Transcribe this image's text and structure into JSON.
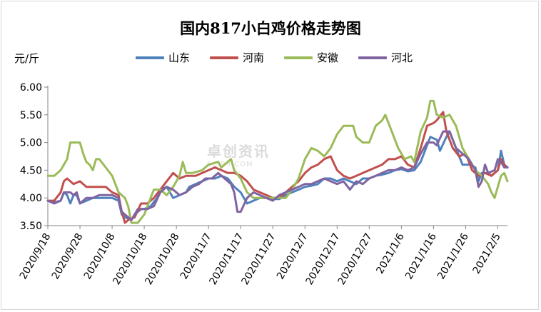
{
  "chart_data": {
    "type": "line",
    "title": "国内817小白鸡价格走势图",
    "ylabel": "元/斤",
    "ylim": [
      3.5,
      6.0
    ],
    "yticks": [
      "3.50",
      "4.00",
      "4.50",
      "5.00",
      "5.50",
      "6.00"
    ],
    "xticks": [
      "2020/9/18",
      "2020/9/28",
      "2020/10/8",
      "2020/10/18",
      "2020/10/28",
      "2020/11/7",
      "2020/11/17",
      "2020/11/27",
      "2020/12/7",
      "2020/12/17",
      "2020/12/27",
      "2021/1/6",
      "2021/1/16",
      "2021/1/26",
      "2021/2/5"
    ],
    "x_start": "2020/9/18",
    "x_end": "2021/2/5",
    "grid": false,
    "legend_position": "top",
    "series": [
      {
        "name": "山东",
        "color": "#4f81bd",
        "points": [
          [
            0,
            3.95
          ],
          [
            2,
            3.92
          ],
          [
            4,
            3.95
          ],
          [
            5,
            4.1
          ],
          [
            6,
            4.05
          ],
          [
            7,
            3.9
          ],
          [
            8,
            4.05
          ],
          [
            9,
            4.05
          ],
          [
            10,
            3.9
          ],
          [
            12,
            3.95
          ],
          [
            14,
            4.0
          ],
          [
            20,
            4.0
          ],
          [
            22,
            3.95
          ],
          [
            23,
            3.7
          ],
          [
            24,
            3.65
          ],
          [
            26,
            3.6
          ],
          [
            27,
            3.7
          ],
          [
            28,
            3.8
          ],
          [
            30,
            3.8
          ],
          [
            32,
            3.85
          ],
          [
            34,
            4.0
          ],
          [
            35,
            4.15
          ],
          [
            37,
            4.2
          ],
          [
            39,
            4.0
          ],
          [
            41,
            4.05
          ],
          [
            43,
            4.1
          ],
          [
            44,
            4.2
          ],
          [
            46,
            4.25
          ],
          [
            48,
            4.3
          ],
          [
            50,
            4.35
          ],
          [
            52,
            4.35
          ],
          [
            54,
            4.4
          ],
          [
            56,
            4.35
          ],
          [
            58,
            4.2
          ],
          [
            60,
            4.1
          ],
          [
            62,
            3.9
          ],
          [
            64,
            3.95
          ],
          [
            66,
            4.0
          ],
          [
            68,
            4.0
          ],
          [
            70,
            3.98
          ],
          [
            72,
            3.98
          ],
          [
            74,
            4.05
          ],
          [
            76,
            4.1
          ],
          [
            78,
            4.15
          ],
          [
            80,
            4.2
          ],
          [
            82,
            4.22
          ],
          [
            84,
            4.25
          ],
          [
            86,
            4.35
          ],
          [
            88,
            4.35
          ],
          [
            90,
            4.3
          ],
          [
            92,
            4.35
          ],
          [
            94,
            4.3
          ],
          [
            96,
            4.25
          ],
          [
            98,
            4.35
          ],
          [
            100,
            4.35
          ],
          [
            102,
            4.4
          ],
          [
            104,
            4.42
          ],
          [
            106,
            4.45
          ],
          [
            108,
            4.5
          ],
          [
            110,
            4.52
          ],
          [
            112,
            4.48
          ],
          [
            114,
            4.5
          ],
          [
            116,
            4.65
          ],
          [
            118,
            4.95
          ],
          [
            119,
            5.1
          ],
          [
            121,
            5.05
          ],
          [
            122,
            4.85
          ],
          [
            124,
            5.1
          ],
          [
            125,
            5.2
          ],
          [
            127,
            4.9
          ],
          [
            129,
            4.6
          ],
          [
            131,
            4.6
          ],
          [
            133,
            4.55
          ],
          [
            134,
            4.3
          ],
          [
            135,
            4.45
          ],
          [
            137,
            4.45
          ],
          [
            138,
            4.4
          ],
          [
            140,
            4.5
          ],
          [
            141,
            4.85
          ],
          [
            142,
            4.6
          ],
          [
            143,
            4.55
          ]
        ]
      },
      {
        "name": "河南",
        "color": "#c0504d",
        "points": [
          [
            0,
            3.95
          ],
          [
            2,
            3.95
          ],
          [
            4,
            4.1
          ],
          [
            5,
            4.3
          ],
          [
            6,
            4.35
          ],
          [
            8,
            4.25
          ],
          [
            10,
            4.3
          ],
          [
            11,
            4.25
          ],
          [
            12,
            4.2
          ],
          [
            18,
            4.2
          ],
          [
            20,
            4.1
          ],
          [
            22,
            4.05
          ],
          [
            23,
            3.75
          ],
          [
            24,
            3.55
          ],
          [
            25,
            3.6
          ],
          [
            27,
            3.65
          ],
          [
            29,
            3.9
          ],
          [
            31,
            3.9
          ],
          [
            33,
            4.0
          ],
          [
            35,
            4.15
          ],
          [
            37,
            4.3
          ],
          [
            39,
            4.45
          ],
          [
            41,
            4.35
          ],
          [
            43,
            4.4
          ],
          [
            46,
            4.4
          ],
          [
            48,
            4.45
          ],
          [
            50,
            4.5
          ],
          [
            52,
            4.55
          ],
          [
            54,
            4.5
          ],
          [
            56,
            4.45
          ],
          [
            58,
            4.45
          ],
          [
            60,
            4.4
          ],
          [
            62,
            4.3
          ],
          [
            64,
            4.15
          ],
          [
            66,
            4.1
          ],
          [
            68,
            4.05
          ],
          [
            70,
            4.0
          ],
          [
            72,
            4.0
          ],
          [
            74,
            4.1
          ],
          [
            76,
            4.2
          ],
          [
            78,
            4.3
          ],
          [
            80,
            4.45
          ],
          [
            82,
            4.55
          ],
          [
            84,
            4.6
          ],
          [
            86,
            4.7
          ],
          [
            88,
            4.75
          ],
          [
            90,
            4.5
          ],
          [
            92,
            4.4
          ],
          [
            94,
            4.35
          ],
          [
            96,
            4.4
          ],
          [
            98,
            4.45
          ],
          [
            100,
            4.5
          ],
          [
            102,
            4.55
          ],
          [
            104,
            4.6
          ],
          [
            106,
            4.7
          ],
          [
            108,
            4.7
          ],
          [
            110,
            4.75
          ],
          [
            112,
            4.6
          ],
          [
            114,
            4.55
          ],
          [
            116,
            4.9
          ],
          [
            118,
            5.3
          ],
          [
            120,
            5.35
          ],
          [
            121,
            5.4
          ],
          [
            123,
            5.55
          ],
          [
            124,
            5.2
          ],
          [
            126,
            4.9
          ],
          [
            128,
            4.75
          ],
          [
            130,
            4.8
          ],
          [
            132,
            4.5
          ],
          [
            134,
            4.4
          ],
          [
            136,
            4.45
          ],
          [
            138,
            4.4
          ],
          [
            140,
            4.5
          ],
          [
            141,
            4.7
          ],
          [
            142,
            4.6
          ],
          [
            143,
            4.55
          ]
        ]
      },
      {
        "name": "安徽",
        "color": "#9bbb59",
        "points": [
          [
            0,
            4.4
          ],
          [
            2,
            4.4
          ],
          [
            4,
            4.5
          ],
          [
            6,
            4.7
          ],
          [
            7,
            5.0
          ],
          [
            10,
            5.0
          ],
          [
            11,
            4.8
          ],
          [
            12,
            4.65
          ],
          [
            13,
            4.6
          ],
          [
            14,
            4.5
          ],
          [
            15,
            4.7
          ],
          [
            16,
            4.7
          ],
          [
            18,
            4.55
          ],
          [
            20,
            4.4
          ],
          [
            22,
            4.1
          ],
          [
            24,
            4.0
          ],
          [
            25,
            3.85
          ],
          [
            26,
            3.55
          ],
          [
            28,
            3.55
          ],
          [
            30,
            3.7
          ],
          [
            32,
            4.0
          ],
          [
            33,
            4.15
          ],
          [
            35,
            4.15
          ],
          [
            37,
            4.05
          ],
          [
            39,
            4.2
          ],
          [
            41,
            4.4
          ],
          [
            42,
            4.65
          ],
          [
            43,
            4.45
          ],
          [
            45,
            4.45
          ],
          [
            48,
            4.5
          ],
          [
            50,
            4.6
          ],
          [
            53,
            4.65
          ],
          [
            54,
            4.55
          ],
          [
            55,
            4.6
          ],
          [
            57,
            4.7
          ],
          [
            58,
            4.5
          ],
          [
            60,
            4.35
          ],
          [
            62,
            4.1
          ],
          [
            64,
            4.0
          ],
          [
            66,
            4.0
          ],
          [
            68,
            4.0
          ],
          [
            70,
            4.0
          ],
          [
            72,
            4.0
          ],
          [
            74,
            4.0
          ],
          [
            76,
            4.15
          ],
          [
            78,
            4.35
          ],
          [
            80,
            4.7
          ],
          [
            82,
            4.9
          ],
          [
            84,
            4.85
          ],
          [
            86,
            4.75
          ],
          [
            88,
            4.9
          ],
          [
            90,
            5.15
          ],
          [
            92,
            5.3
          ],
          [
            95,
            5.3
          ],
          [
            96,
            5.1
          ],
          [
            98,
            5.0
          ],
          [
            100,
            5.0
          ],
          [
            102,
            5.3
          ],
          [
            104,
            5.4
          ],
          [
            105,
            5.5
          ],
          [
            107,
            5.2
          ],
          [
            109,
            4.9
          ],
          [
            111,
            4.7
          ],
          [
            113,
            4.75
          ],
          [
            114,
            4.65
          ],
          [
            116,
            5.2
          ],
          [
            118,
            5.45
          ],
          [
            119,
            5.75
          ],
          [
            120,
            5.75
          ],
          [
            121,
            5.5
          ],
          [
            123,
            5.45
          ],
          [
            125,
            5.5
          ],
          [
            127,
            5.3
          ],
          [
            129,
            4.9
          ],
          [
            131,
            4.7
          ],
          [
            133,
            4.5
          ],
          [
            135,
            4.4
          ],
          [
            137,
            4.25
          ],
          [
            138,
            4.1
          ],
          [
            139,
            4.0
          ],
          [
            141,
            4.4
          ],
          [
            142,
            4.45
          ],
          [
            143,
            4.3
          ]
        ]
      },
      {
        "name": "河北",
        "color": "#8064a2",
        "points": [
          [
            0,
            3.95
          ],
          [
            2,
            3.9
          ],
          [
            4,
            3.95
          ],
          [
            5,
            4.1
          ],
          [
            7,
            4.1
          ],
          [
            8,
            4.05
          ],
          [
            9,
            4.1
          ],
          [
            10,
            3.9
          ],
          [
            12,
            4.0
          ],
          [
            14,
            4.0
          ],
          [
            16,
            4.05
          ],
          [
            20,
            4.05
          ],
          [
            22,
            4.0
          ],
          [
            23,
            3.75
          ],
          [
            24,
            3.7
          ],
          [
            26,
            3.6
          ],
          [
            27,
            3.7
          ],
          [
            29,
            3.8
          ],
          [
            31,
            3.8
          ],
          [
            33,
            3.85
          ],
          [
            35,
            4.1
          ],
          [
            37,
            4.2
          ],
          [
            39,
            4.15
          ],
          [
            41,
            4.05
          ],
          [
            43,
            4.1
          ],
          [
            45,
            4.2
          ],
          [
            47,
            4.25
          ],
          [
            49,
            4.35
          ],
          [
            51,
            4.35
          ],
          [
            53,
            4.45
          ],
          [
            55,
            4.35
          ],
          [
            57,
            4.25
          ],
          [
            58,
            4.1
          ],
          [
            59,
            3.75
          ],
          [
            60,
            3.75
          ],
          [
            62,
            4.0
          ],
          [
            64,
            4.1
          ],
          [
            66,
            4.05
          ],
          [
            68,
            4.0
          ],
          [
            70,
            3.95
          ],
          [
            72,
            4.05
          ],
          [
            74,
            4.1
          ],
          [
            76,
            4.15
          ],
          [
            78,
            4.2
          ],
          [
            80,
            4.25
          ],
          [
            82,
            4.25
          ],
          [
            84,
            4.3
          ],
          [
            86,
            4.35
          ],
          [
            88,
            4.3
          ],
          [
            90,
            4.25
          ],
          [
            92,
            4.3
          ],
          [
            94,
            4.15
          ],
          [
            96,
            4.3
          ],
          [
            98,
            4.25
          ],
          [
            100,
            4.35
          ],
          [
            102,
            4.4
          ],
          [
            104,
            4.45
          ],
          [
            106,
            4.5
          ],
          [
            108,
            4.5
          ],
          [
            110,
            4.55
          ],
          [
            112,
            4.5
          ],
          [
            114,
            4.55
          ],
          [
            116,
            4.8
          ],
          [
            118,
            5.0
          ],
          [
            120,
            5.0
          ],
          [
            121,
            4.95
          ],
          [
            123,
            5.2
          ],
          [
            125,
            5.2
          ],
          [
            127,
            4.9
          ],
          [
            129,
            4.8
          ],
          [
            131,
            4.7
          ],
          [
            133,
            4.5
          ],
          [
            134,
            4.2
          ],
          [
            135,
            4.3
          ],
          [
            136,
            4.6
          ],
          [
            137,
            4.45
          ],
          [
            139,
            4.5
          ],
          [
            140,
            4.7
          ],
          [
            141,
            4.65
          ],
          [
            142,
            4.55
          ],
          [
            143,
            4.55
          ]
        ]
      }
    ]
  },
  "watermark": {
    "main": "卓创资讯",
    "sub": "SCI99.COM"
  }
}
